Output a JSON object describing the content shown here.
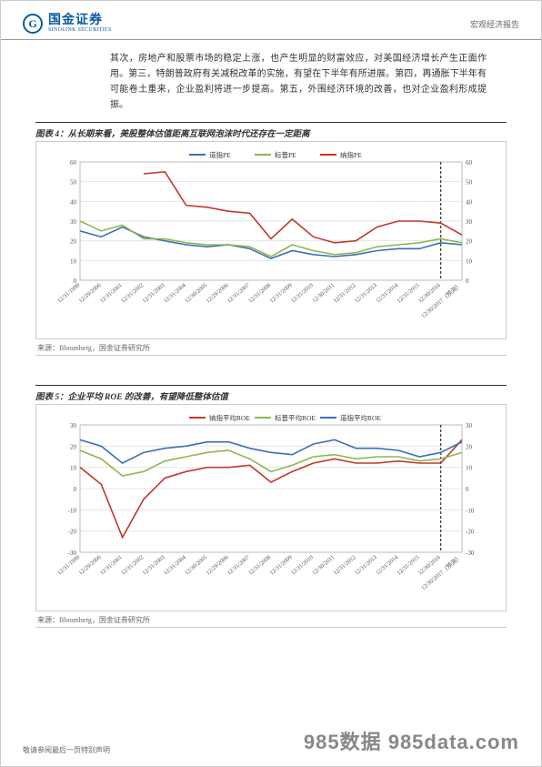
{
  "header": {
    "logo_cn": "国金证券",
    "logo_en": "SINOLINK SECURITIES",
    "report_type": "宏观经济报告"
  },
  "paragraph": "其次，房地产和股票市场的稳定上涨，也产生明显的财富效应，对美国经济增长产生正面作用。第三，特朗普政府有关减税改革的实施，有望在下半年有所进展。第四，再通胀下半年有可能卷土重来，企业盈利将进一步提高。第五，外围经济环境的改善，也对企业盈利形成提振。",
  "chart4": {
    "title": "图表 4：从长期来看，美股整体估值距离互联网泡沫时代还存在一定距离",
    "type": "line",
    "legend": [
      {
        "label": "道指PE",
        "color": "#3b6fb6"
      },
      {
        "label": "标普PE",
        "color": "#8fb84a"
      },
      {
        "label": "纳指PE",
        "color": "#c0392b"
      }
    ],
    "x_labels": [
      "12/31/1999",
      "12/29/2000",
      "12/31/2001",
      "12/31/2002",
      "12/31/2003",
      "12/31/2004",
      "12/30/2005",
      "12/29/2006",
      "12/31/2007",
      "12/31/2008",
      "12/31/2009",
      "12/31/2010",
      "12/30/2011",
      "12/31/2012",
      "12/31/2013",
      "12/31/2014",
      "12/31/2015",
      "12/30/2016",
      "12/30/2017（预测）"
    ],
    "ylim": [
      0,
      60
    ],
    "ytick_step": 10,
    "label_fontsize": 7,
    "grid_color": "#e6e6e6",
    "background_color": "#ffffff",
    "forecast_divider_index": 17,
    "series": {
      "dao": [
        25,
        22,
        27,
        22,
        20,
        18,
        17,
        18,
        16,
        11,
        15,
        13,
        12,
        13,
        15,
        16,
        16,
        19,
        18
      ],
      "sp": [
        30,
        25,
        28,
        21,
        21,
        19,
        18,
        18,
        17,
        12,
        18,
        15,
        13,
        14,
        17,
        18,
        19,
        21,
        19
      ],
      "nas": [
        null,
        null,
        null,
        54,
        55,
        38,
        37,
        35,
        34,
        21,
        31,
        22,
        19,
        20,
        27,
        30,
        30,
        29,
        23
      ]
    },
    "source": "来源：Bloomberg，国金证券研究所"
  },
  "chart5": {
    "title": "图表 5：企业平均 ROE 的改善，有望降低整体估值",
    "type": "line",
    "legend": [
      {
        "label": "纳指平均ROE",
        "color": "#c0392b"
      },
      {
        "label": "标普平均ROE",
        "color": "#8fb84a"
      },
      {
        "label": "道指平均ROE",
        "color": "#3b6fb6"
      }
    ],
    "x_labels": [
      "12/31/1999",
      "12/29/2000",
      "12/31/2001",
      "12/31/2002",
      "12/31/2003",
      "12/31/2004",
      "12/30/2005",
      "12/29/2006",
      "12/31/2007",
      "12/31/2008",
      "12/31/2009",
      "12/31/2010",
      "12/30/2011",
      "12/31/2012",
      "12/31/2013",
      "12/31/2014",
      "12/31/2015",
      "12/30/2016",
      "12/30/2017（预测）"
    ],
    "ylim": [
      -30,
      30
    ],
    "ytick_step": 10,
    "label_fontsize": 7,
    "grid_color": "#e6e6e6",
    "background_color": "#ffffff",
    "forecast_divider_index": 17,
    "series": {
      "nas": [
        10,
        2,
        -23,
        -5,
        5,
        8,
        10,
        10,
        11,
        3,
        8,
        12,
        14,
        12,
        12,
        13,
        12,
        12,
        23
      ],
      "sp": [
        18,
        14,
        6,
        8,
        13,
        15,
        17,
        18,
        14,
        8,
        11,
        15,
        16,
        14,
        15,
        15,
        13,
        14,
        17
      ],
      "dao": [
        23,
        20,
        12,
        17,
        19,
        20,
        22,
        22,
        19,
        17,
        16,
        21,
        23,
        19,
        19,
        18,
        15,
        17,
        22
      ]
    },
    "source": "来源：Bloomberg，国金证券研究所"
  },
  "footer": {
    "disclaimer": "敬请参阅最后一页特别声明",
    "watermark": "985数据 985data.com"
  }
}
